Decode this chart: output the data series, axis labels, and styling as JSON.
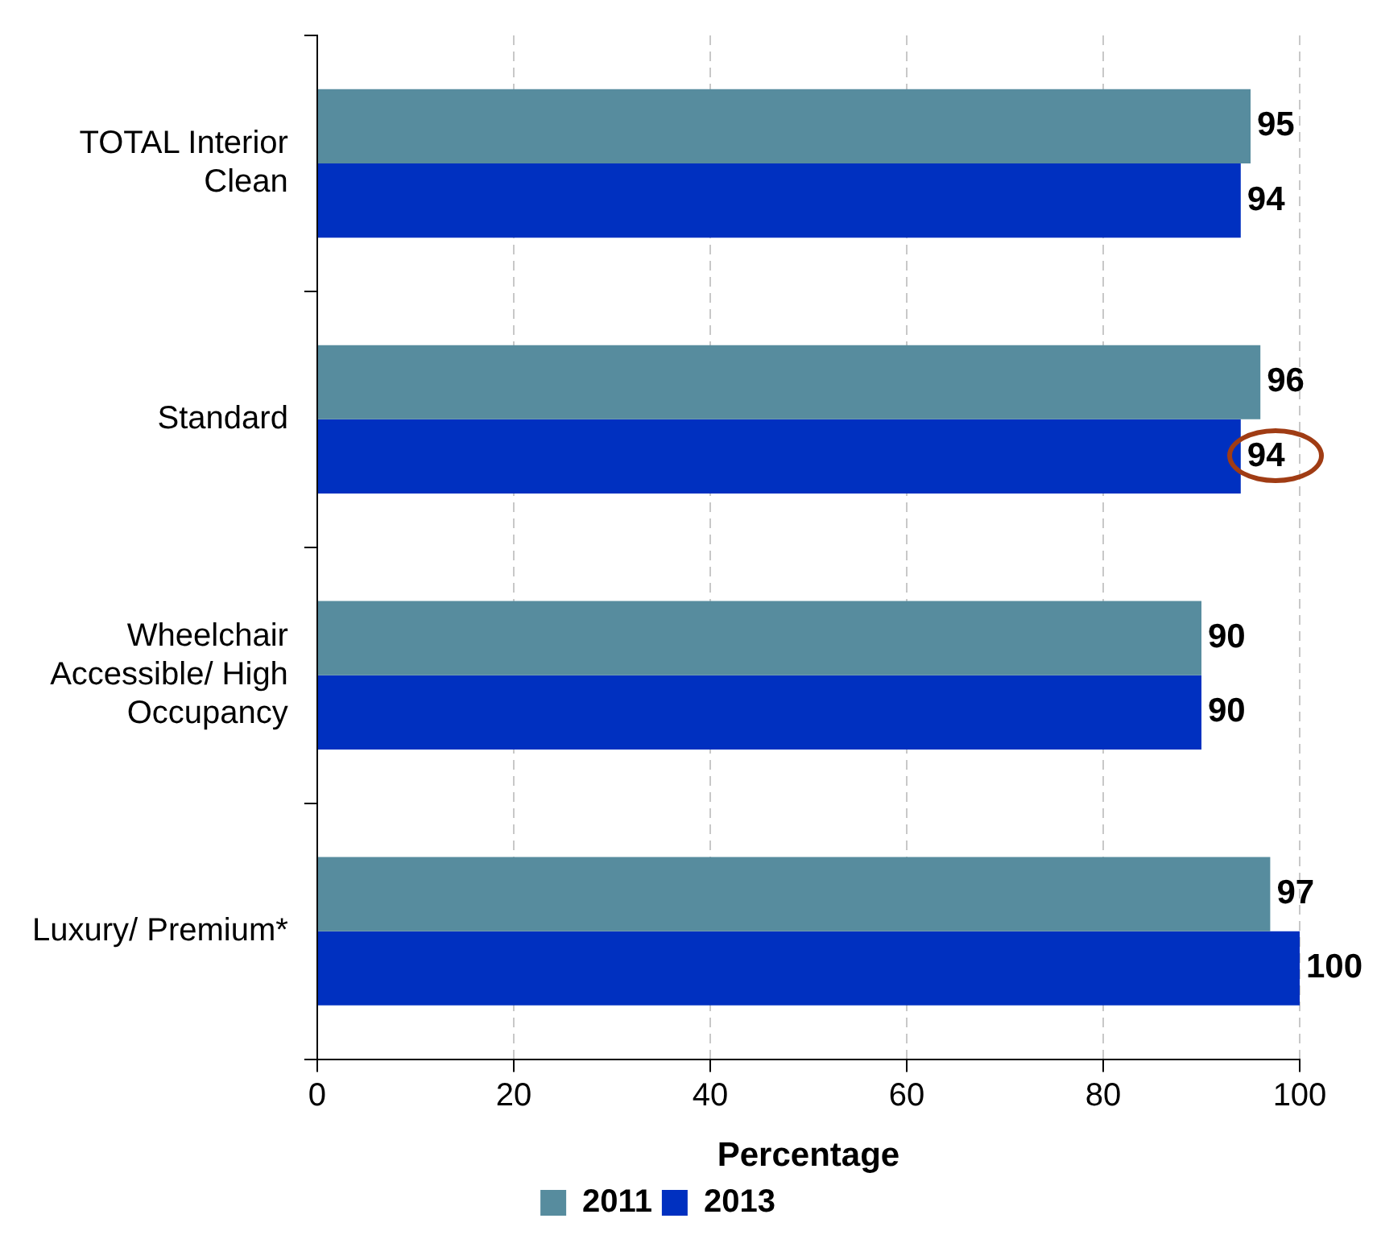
{
  "chart_data": {
    "type": "bar",
    "orientation": "horizontal",
    "xlabel": "Percentage",
    "categories": [
      "TOTAL Interior Clean",
      "Standard",
      "Wheelchair Accessible/ High Occupancy",
      "Luxury/ Premium*"
    ],
    "series": [
      {
        "name": "2011",
        "color": "#578c9e",
        "values": [
          95,
          96,
          90,
          97
        ]
      },
      {
        "name": "2013",
        "color": "#0030c0",
        "values": [
          94,
          94,
          90,
          100
        ]
      }
    ],
    "xlim": [
      0,
      100
    ],
    "xticks": [
      0,
      20,
      40,
      60,
      80,
      100
    ],
    "grid": "x",
    "legend": "bottom",
    "data_labels": true
  }
}
